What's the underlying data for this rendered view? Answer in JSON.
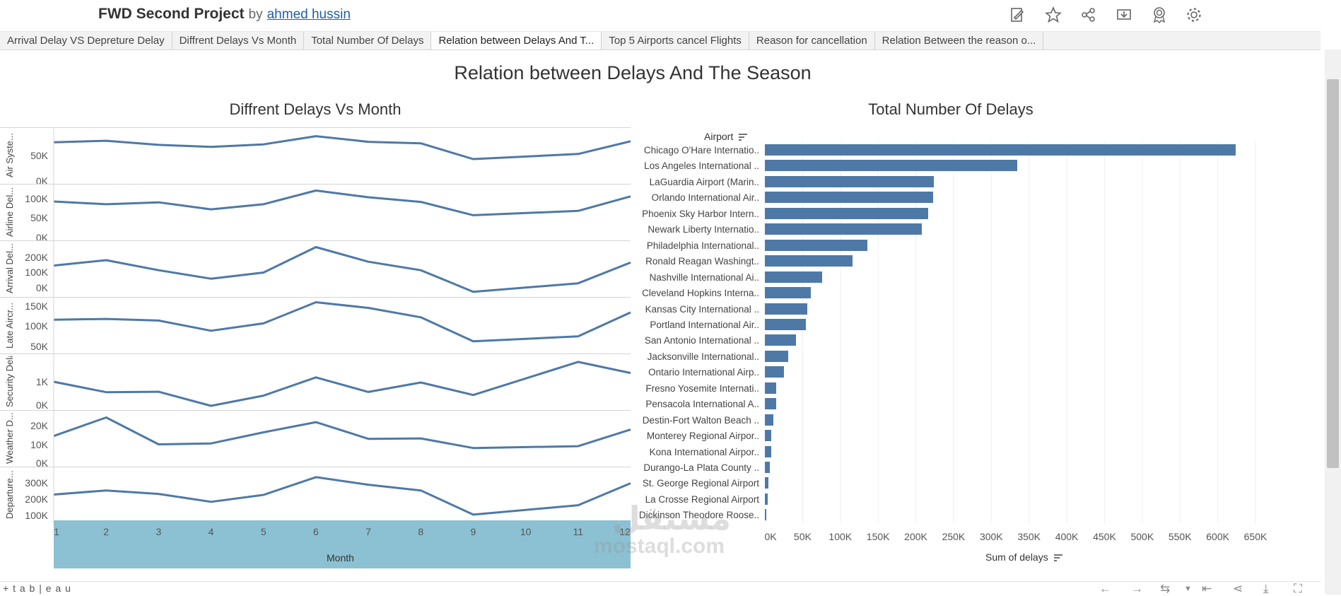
{
  "header": {
    "title": "FWD Second Project",
    "by": "by",
    "author": "ahmed hussin",
    "icons": [
      "edit-icon",
      "star-icon",
      "share-icon",
      "download-icon",
      "metrics-icon",
      "settings-icon"
    ]
  },
  "tabs": [
    {
      "label": "Arrival Delay VS Depreture Delay"
    },
    {
      "label": "Diffrent Delays Vs Month"
    },
    {
      "label": "Total Number Of Delays"
    },
    {
      "label": "Relation between Delays And T..."
    },
    {
      "label": "Top 5 Airports cancel Flights"
    },
    {
      "label": "Reason for cancellation"
    },
    {
      "label": "Relation Between the reason o..."
    }
  ],
  "dashboard_title": "Relation between Delays And The Season",
  "left_chart": {
    "title": "Diffrent Delays Vs Month",
    "x_title": "Month",
    "months": [
      "1",
      "2",
      "3",
      "4",
      "5",
      "6",
      "7",
      "8",
      "9",
      "10",
      "11",
      "12"
    ],
    "lanes": [
      {
        "label": "Air Syste...",
        "ticks": [
          "50K",
          "0K"
        ]
      },
      {
        "label": "Airline Del...",
        "ticks": [
          "100K",
          "50K",
          "0K"
        ]
      },
      {
        "label": "Arrival Del...",
        "ticks": [
          "200K",
          "100K",
          "0K"
        ]
      },
      {
        "label": "Late Aircr...",
        "ticks": [
          "150K",
          "100K",
          "50K"
        ]
      },
      {
        "label": "Security Delay",
        "ticks": [
          "1K",
          "0K"
        ]
      },
      {
        "label": "Weather D...",
        "ticks": [
          "20K",
          "10K",
          "0K"
        ]
      },
      {
        "label": "Departure...",
        "ticks": [
          "300K",
          "200K",
          "100K"
        ]
      }
    ]
  },
  "chart_data": [
    {
      "type": "line",
      "title": "Diffrent Delays Vs Month",
      "xlabel": "Month",
      "x": [
        1,
        2,
        3,
        4,
        5,
        6,
        7,
        8,
        9,
        10,
        11,
        12
      ],
      "series": [
        {
          "name": "Air System Delay",
          "values": [
            76000,
            79000,
            71000,
            67000,
            72000,
            88000,
            77000,
            74000,
            43000,
            null,
            53000,
            78000
          ],
          "ylim": [
            0,
            100000
          ]
        },
        {
          "name": "Airline Delay",
          "values": [
            92000,
            85000,
            90000,
            72000,
            85000,
            120000,
            103000,
            91000,
            57000,
            null,
            68000,
            105000
          ],
          "ylim": [
            0,
            130000
          ]
        },
        {
          "name": "Arrival Delay",
          "values": [
            145000,
            180000,
            115000,
            60000,
            100000,
            265000,
            170000,
            115000,
            -25000,
            null,
            30000,
            165000
          ],
          "ylim": [
            -40000,
            290000
          ]
        },
        {
          "name": "Late Aircraft Delay",
          "values": [
            116000,
            118000,
            114000,
            89000,
            107000,
            159000,
            145000,
            122000,
            63000,
            null,
            75000,
            134000
          ],
          "ylim": [
            40000,
            165000
          ]
        },
        {
          "name": "Security Delay",
          "values": [
            1000,
            550,
            570,
            -40,
            400,
            1190,
            560,
            970,
            430,
            null,
            1860,
            1380
          ],
          "ylim": [
            -100,
            2100
          ]
        },
        {
          "name": "Weather Delay",
          "values": [
            14500,
            24500,
            10000,
            10500,
            16500,
            22000,
            13000,
            13200,
            8000,
            null,
            9000,
            18000
          ],
          "ylim": [
            -500,
            27000
          ]
        },
        {
          "name": "Departure Delay",
          "values": [
            227000,
            252000,
            231000,
            183000,
            225000,
            333000,
            287000,
            252000,
            105000,
            null,
            162000,
            296000
          ],
          "ylim": [
            70000,
            380000
          ]
        }
      ]
    },
    {
      "type": "bar",
      "title": "Total Number Of Delays",
      "ylabel": "Airport",
      "xlabel": "Sum of delays",
      "xlim": [
        0,
        650000
      ],
      "categories": [
        "Chicago O'Hare Internatio..",
        "Los Angeles International ..",
        "LaGuardia Airport (Marin..",
        "Orlando International Air..",
        "Phoenix Sky Harbor Intern..",
        "Newark Liberty Internatio..",
        "Philadelphia International..",
        "Ronald Reagan Washingt..",
        "Nashville International Ai..",
        "Cleveland Hopkins Interna..",
        "Kansas City International ..",
        "Portland International Air..",
        "San Antonio International ..",
        "Jacksonville International..",
        "Ontario International Airp..",
        "Fresno Yosemite Internati..",
        "Pensacola International A..",
        "Destin-Fort Walton Beach ..",
        "Monterey Regional Airpor..",
        "Kona International Airpor..",
        "Durango-La Plata County ..",
        "St. George Regional Airport",
        "La Crosse Regional Airport",
        "Dickinson Theodore Roose.."
      ],
      "values": [
        624000,
        334000,
        224000,
        223000,
        216000,
        208000,
        136000,
        116000,
        76000,
        61000,
        56000,
        54000,
        41000,
        31000,
        25000,
        15000,
        15000,
        11000,
        8000,
        8000,
        7000,
        5000,
        4000,
        2000
      ],
      "xticks": [
        "0K",
        "50K",
        "100K",
        "150K",
        "200K",
        "250K",
        "300K",
        "350K",
        "400K",
        "450K",
        "500K",
        "550K",
        "600K",
        "650K"
      ]
    }
  ],
  "right_chart": {
    "title": "Total Number Of Delays",
    "y_header": "Airport",
    "x_title": "Sum of delays"
  },
  "watermark": {
    "arabic": "مستقل",
    "latin": "mostaql.com"
  },
  "footer": {
    "brand": "+ t a b | e a u"
  },
  "colors": {
    "line": "#4e79a7",
    "bar": "#4e79a7",
    "band": "#8bc1d2"
  }
}
